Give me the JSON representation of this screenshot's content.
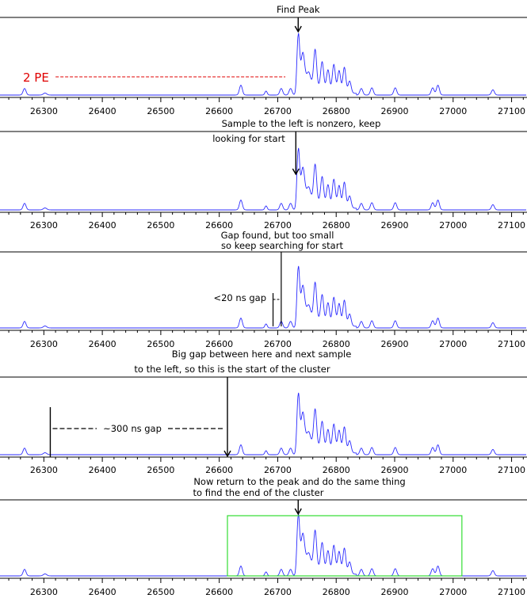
{
  "colors": {
    "trace": "#2b2bff",
    "axis": "#000000",
    "threshold": "#e00000",
    "cluster_box": "#33dd33",
    "annotation": "#000000"
  },
  "chart_data": [
    {
      "type": "line",
      "xlim": [
        26225,
        27125
      ],
      "x_ticks": [
        26300,
        26400,
        26500,
        26600,
        26700,
        26800,
        26900,
        27000,
        27100
      ],
      "annotations": {
        "title": "Find Peak",
        "pe_label": "2 PE",
        "peak_x": 26735,
        "pe_line_x": [
          26255,
          26713
        ]
      }
    },
    {
      "type": "line",
      "xlim": [
        26225,
        27125
      ],
      "x_ticks": [
        26300,
        26400,
        26500,
        26600,
        26700,
        26800,
        26900,
        27000,
        27100
      ],
      "annotations": {
        "line1": "Sample to the left is nonzero, keep",
        "line2": "looking for start",
        "arrow_x": 26731
      }
    },
    {
      "type": "line",
      "xlim": [
        26225,
        27125
      ],
      "x_ticks": [
        26300,
        26400,
        26500,
        26600,
        26700,
        26800,
        26900,
        27000,
        27100
      ],
      "annotations": {
        "line1": "Gap found, but too small",
        "line2": "so keep searching for start",
        "gap_label": "<20 ns gap",
        "gap_left_x": 26692,
        "gap_right_x": 26706
      }
    },
    {
      "type": "line",
      "xlim": [
        26225,
        27125
      ],
      "x_ticks": [
        26300,
        26400,
        26500,
        26600,
        26700,
        26800,
        26900,
        27000,
        27100
      ],
      "annotations": {
        "line1": "Big gap between here and next sample",
        "line2": "to the left, so this is the start of the cluster",
        "gap_label": "~300 ns gap",
        "gap_left_x": 26311,
        "gap_right_x": 26614
      }
    },
    {
      "type": "line",
      "xlim": [
        26225,
        27125
      ],
      "x_ticks": [
        26300,
        26400,
        26500,
        26600,
        26700,
        26800,
        26900,
        27000,
        27100
      ],
      "annotations": {
        "line1": "Now return to the peak and do the same thing",
        "line2": "to find the end of the cluster",
        "peak_x": 26735,
        "box_x": [
          26614,
          27015
        ]
      }
    }
  ],
  "waveform": {
    "x_range_ns": [
      26225,
      27125
    ],
    "baseline": 0,
    "peaks": [
      {
        "t": 26267,
        "a": 0.1,
        "w": 2.5
      },
      {
        "t": 26302,
        "a": 0.03,
        "w": 3.0
      },
      {
        "t": 26637,
        "a": 0.15,
        "w": 2.5
      },
      {
        "t": 26680,
        "a": 0.06,
        "w": 2.0
      },
      {
        "t": 26706,
        "a": 0.1,
        "w": 2.5
      },
      {
        "t": 26722,
        "a": 0.1,
        "w": 2.5
      },
      {
        "t": 26735,
        "a": 0.9,
        "w": 2.2
      },
      {
        "t": 26743,
        "a": 0.42,
        "w": 3.0
      },
      {
        "t": 26753,
        "a": 0.16,
        "w": 3.0
      },
      {
        "t": 26764,
        "a": 0.55,
        "w": 2.5
      },
      {
        "t": 26776,
        "a": 0.4,
        "w": 2.5
      },
      {
        "t": 26786,
        "a": 0.3,
        "w": 2.5
      },
      {
        "t": 26796,
        "a": 0.4,
        "w": 2.5
      },
      {
        "t": 26805,
        "a": 0.32,
        "w": 2.5
      },
      {
        "t": 26814,
        "a": 0.38,
        "w": 2.5
      },
      {
        "t": 26823,
        "a": 0.18,
        "w": 2.5
      },
      {
        "t": 26843,
        "a": 0.1,
        "w": 2.5
      },
      {
        "t": 26861,
        "a": 0.11,
        "w": 2.5
      },
      {
        "t": 26901,
        "a": 0.11,
        "w": 2.5
      },
      {
        "t": 26965,
        "a": 0.11,
        "w": 2.5
      },
      {
        "t": 26974,
        "a": 0.15,
        "w": 2.5
      },
      {
        "t": 27068,
        "a": 0.08,
        "w": 2.5
      }
    ],
    "tail": {
      "start": 26735,
      "end": 26835,
      "a": 0.3,
      "tau": 40
    }
  }
}
